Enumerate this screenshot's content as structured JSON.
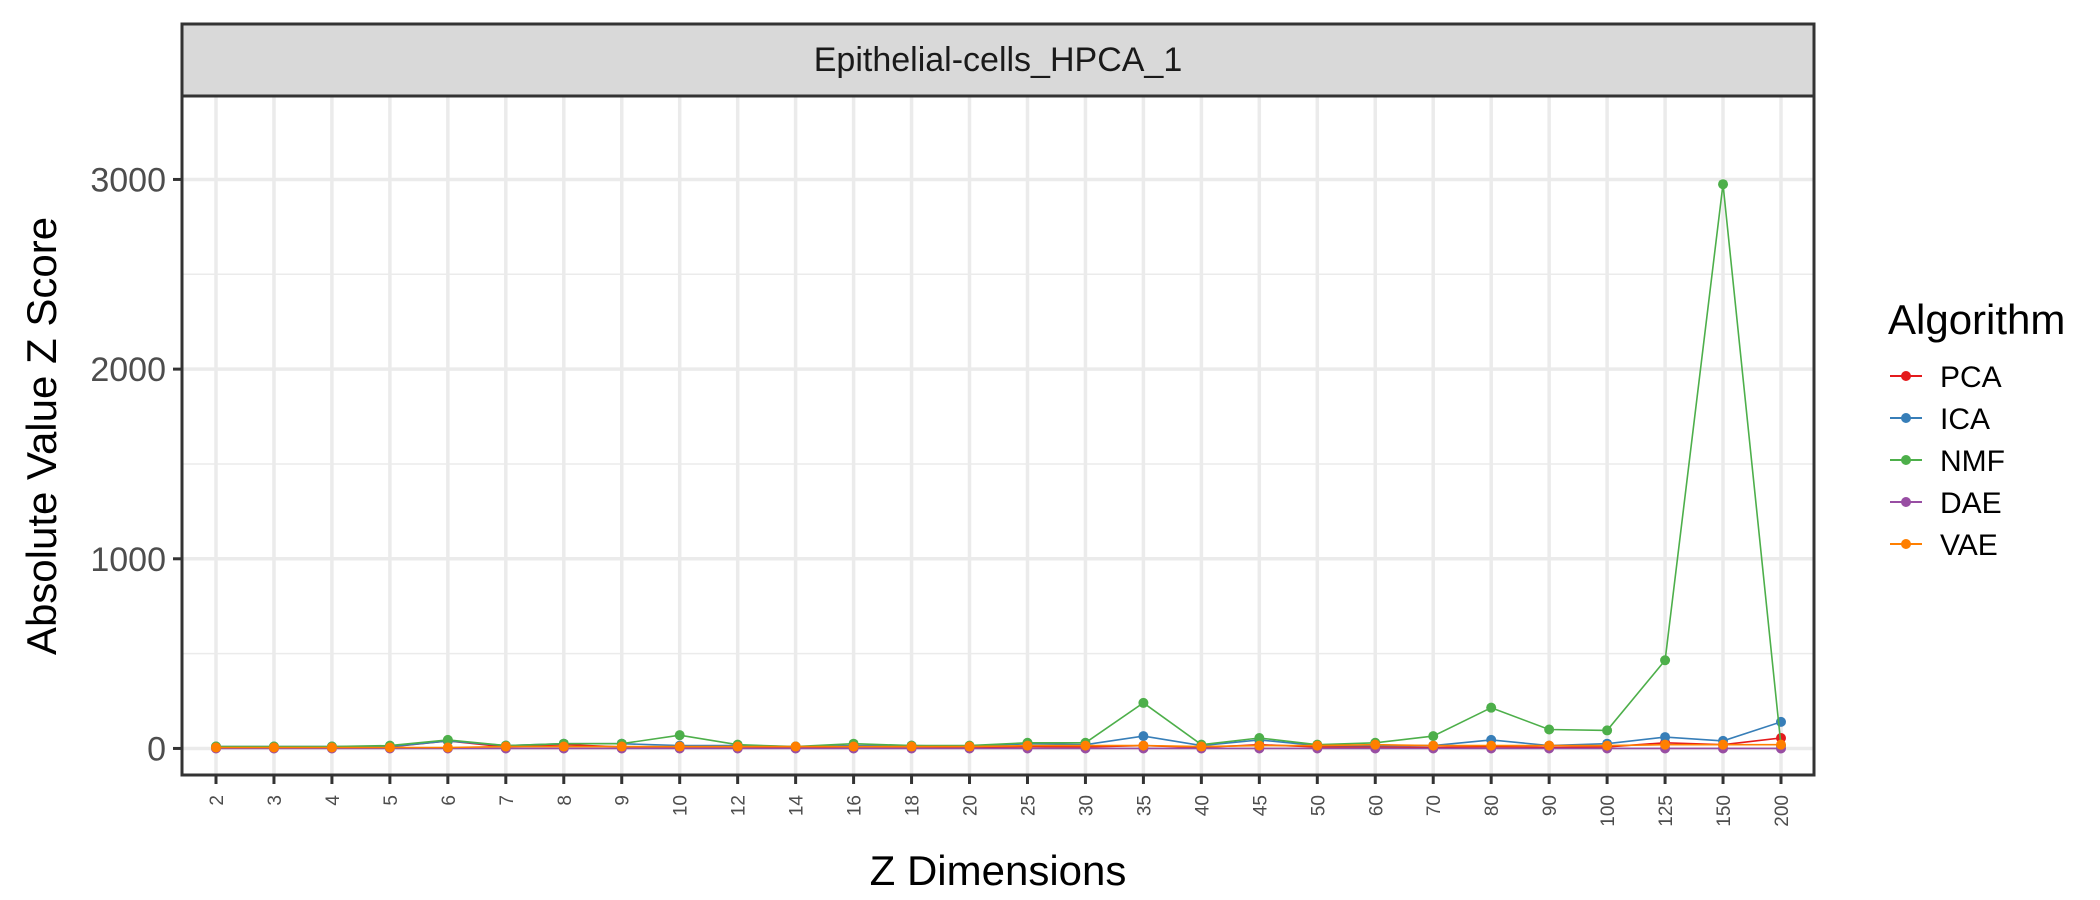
{
  "chart_data": {
    "type": "line",
    "title": "",
    "facet_label": "Epithelial-cells_HPCA_1",
    "xlabel": "Z Dimensions",
    "ylabel": "Absolute Value Z Score",
    "ylim": [
      -140,
      3440
    ],
    "y_ticks": [
      0,
      1000,
      2000,
      3000
    ],
    "y_tick_labels": [
      "0",
      "1000",
      "2000",
      "3000"
    ],
    "categories": [
      "2",
      "3",
      "4",
      "5",
      "6",
      "7",
      "8",
      "9",
      "10",
      "12",
      "14",
      "16",
      "18",
      "20",
      "25",
      "30",
      "35",
      "40",
      "45",
      "50",
      "60",
      "70",
      "80",
      "90",
      "100",
      "125",
      "150",
      "200"
    ],
    "grid": true,
    "legend": {
      "title": "Algorithm",
      "placement": "right"
    },
    "series": [
      {
        "name": "PCA",
        "color": "#E41A1C",
        "values": [
          5,
          5,
          5,
          8,
          40,
          8,
          20,
          8,
          8,
          8,
          5,
          8,
          8,
          5,
          10,
          8,
          15,
          5,
          20,
          8,
          8,
          5,
          10,
          5,
          8,
          30,
          20,
          55
        ]
      },
      {
        "name": "ICA",
        "color": "#377EB8",
        "values": [
          10,
          10,
          10,
          10,
          40,
          15,
          25,
          25,
          15,
          15,
          10,
          15,
          15,
          10,
          25,
          20,
          65,
          15,
          45,
          15,
          15,
          15,
          45,
          15,
          25,
          60,
          40,
          140
        ]
      },
      {
        "name": "NMF",
        "color": "#4DAF4A",
        "values": [
          10,
          10,
          10,
          15,
          45,
          15,
          25,
          25,
          70,
          20,
          10,
          25,
          15,
          15,
          30,
          30,
          240,
          20,
          55,
          20,
          30,
          65,
          215,
          100,
          95,
          465,
          2975,
          15
        ]
      },
      {
        "name": "DAE",
        "color": "#984EA3",
        "values": [
          0,
          0,
          0,
          0,
          0,
          0,
          0,
          0,
          0,
          0,
          0,
          0,
          0,
          0,
          0,
          0,
          0,
          0,
          0,
          0,
          0,
          0,
          0,
          0,
          0,
          0,
          0,
          0
        ]
      },
      {
        "name": "VAE",
        "color": "#FF7F00",
        "values": [
          5,
          5,
          5,
          5,
          5,
          10,
          10,
          10,
          10,
          10,
          10,
          10,
          10,
          10,
          15,
          15,
          15,
          10,
          15,
          15,
          20,
          15,
          15,
          15,
          15,
          20,
          20,
          20
        ]
      }
    ]
  }
}
